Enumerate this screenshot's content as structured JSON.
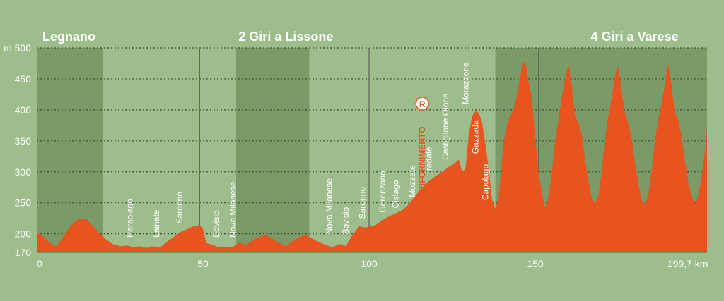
{
  "colors": {
    "background": "#9dbe8c",
    "band": "#7a9a68",
    "profile": "#e8541f",
    "text": "#ffffff",
    "grid": "#3d4a36",
    "divider": "#5a6a55"
  },
  "chart_data": {
    "type": "area",
    "title": "",
    "xlabel": "",
    "ylabel": "m",
    "x_unit": "km",
    "xlim": [
      0,
      201.7
    ],
    "ylim": [
      170,
      500
    ],
    "x_ticks": [
      {
        "value": 0,
        "label": "0"
      },
      {
        "value": 50,
        "label": "50"
      },
      {
        "value": 100,
        "label": "100"
      },
      {
        "value": 150,
        "label": "150"
      },
      {
        "value": 199.7,
        "label": "199,7 km"
      }
    ],
    "y_ticks": [
      {
        "value": 500,
        "label": "m 500"
      },
      {
        "value": 450,
        "label": "450"
      },
      {
        "value": 400,
        "label": "400"
      },
      {
        "value": 350,
        "label": "350"
      },
      {
        "value": 300,
        "label": "300"
      },
      {
        "value": 250,
        "label": "250"
      },
      {
        "value": 200,
        "label": "200"
      },
      {
        "value": 170,
        "label": "170"
      }
    ],
    "grid": true,
    "dividers": [
      49,
      100,
      151
    ],
    "shaded_bands": [
      [
        0,
        20
      ],
      [
        60,
        82
      ],
      [
        138,
        201.7
      ]
    ],
    "sectors": [
      {
        "label": "Legnano",
        "x": 0
      },
      {
        "label": "2 Giri a Lissone",
        "x": 59
      },
      {
        "label": "4 Giri a Varese",
        "x": 165
      }
    ],
    "places": [
      {
        "label": "Parabiago",
        "x": 28,
        "elevation": 185
      },
      {
        "label": "Lainate",
        "x": 36,
        "elevation": 185
      },
      {
        "label": "Saronno",
        "x": 43,
        "elevation": 207
      },
      {
        "label": "Bovisio",
        "x": 54,
        "elevation": 185
      },
      {
        "label": "Nova Milanese",
        "x": 59,
        "elevation": 185
      },
      {
        "label": "Nova Milanese",
        "x": 88,
        "elevation": 190
      },
      {
        "label": "Bovisio",
        "x": 93,
        "elevation": 190
      },
      {
        "label": "Saronno",
        "x": 98,
        "elevation": 215
      },
      {
        "label": "Gerenzano",
        "x": 104,
        "elevation": 225
      },
      {
        "label": "Cislago",
        "x": 108,
        "elevation": 232
      },
      {
        "label": "Mozzate",
        "x": 113,
        "elevation": 250
      },
      {
        "label": "Tradate",
        "x": 118,
        "elevation": 285
      },
      {
        "label": "Castiglione Olona",
        "x": 123,
        "elevation": 310
      },
      {
        "label": "Morazzone",
        "x": 129,
        "elevation": 400
      },
      {
        "label": "Gazzada",
        "x": 132,
        "elevation": 320
      },
      {
        "label": "Capolago",
        "x": 135,
        "elevation": 245
      }
    ],
    "feed_zone": {
      "label": "RIFORNIMENTO",
      "badge": "R",
      "x": 116
    },
    "profile": [
      [
        0,
        202
      ],
      [
        2,
        196
      ],
      [
        4,
        185
      ],
      [
        6,
        180
      ],
      [
        8,
        195
      ],
      [
        10,
        212
      ],
      [
        12,
        222
      ],
      [
        14,
        225
      ],
      [
        15,
        223
      ],
      [
        17,
        212
      ],
      [
        19,
        200
      ],
      [
        21,
        190
      ],
      [
        23,
        183
      ],
      [
        25,
        180
      ],
      [
        27,
        181
      ],
      [
        29,
        179
      ],
      [
        31,
        180
      ],
      [
        33,
        177
      ],
      [
        35,
        180
      ],
      [
        37,
        178
      ],
      [
        39,
        186
      ],
      [
        41,
        194
      ],
      [
        43,
        202
      ],
      [
        45,
        207
      ],
      [
        47,
        212
      ],
      [
        49,
        214
      ],
      [
        50,
        208
      ],
      [
        51,
        185
      ],
      [
        53,
        182
      ],
      [
        55,
        178
      ],
      [
        57,
        179
      ],
      [
        59,
        179
      ],
      [
        61,
        186
      ],
      [
        63,
        182
      ],
      [
        65,
        190
      ],
      [
        67,
        195
      ],
      [
        69,
        198
      ],
      [
        71,
        192
      ],
      [
        73,
        185
      ],
      [
        75,
        180
      ],
      [
        77,
        188
      ],
      [
        79,
        195
      ],
      [
        81,
        198
      ],
      [
        83,
        192
      ],
      [
        85,
        186
      ],
      [
        87,
        182
      ],
      [
        89,
        178
      ],
      [
        91,
        184
      ],
      [
        93,
        180
      ],
      [
        95,
        198
      ],
      [
        97,
        212
      ],
      [
        99,
        210
      ],
      [
        100,
        212
      ],
      [
        102,
        214
      ],
      [
        104,
        222
      ],
      [
        106,
        228
      ],
      [
        108,
        233
      ],
      [
        110,
        238
      ],
      [
        112,
        248
      ],
      [
        114,
        262
      ],
      [
        116,
        275
      ],
      [
        118,
        285
      ],
      [
        120,
        293
      ],
      [
        122,
        300
      ],
      [
        124,
        308
      ],
      [
        126,
        315
      ],
      [
        127,
        320
      ],
      [
        128,
        300
      ],
      [
        129,
        305
      ],
      [
        130,
        360
      ],
      [
        131,
        390
      ],
      [
        132,
        398
      ],
      [
        133,
        395
      ],
      [
        134,
        380
      ],
      [
        135,
        345
      ],
      [
        136,
        305
      ],
      [
        137,
        255
      ],
      [
        138,
        240
      ],
      [
        139,
        260
      ],
      [
        140,
        320
      ],
      [
        141,
        365
      ],
      [
        142,
        385
      ],
      [
        143,
        395
      ],
      [
        144,
        410
      ],
      [
        145,
        440
      ],
      [
        146,
        470
      ],
      [
        147,
        480
      ],
      [
        148,
        445
      ],
      [
        149,
        420
      ],
      [
        150,
        355
      ],
      [
        151,
        300
      ],
      [
        152,
        265
      ],
      [
        153,
        242
      ],
      [
        154,
        260
      ],
      [
        155,
        300
      ],
      [
        156,
        350
      ],
      [
        157,
        385
      ],
      [
        158,
        420
      ],
      [
        159,
        450
      ],
      [
        160,
        475
      ],
      [
        161,
        440
      ],
      [
        162,
        390
      ],
      [
        163,
        380
      ],
      [
        164,
        360
      ],
      [
        165,
        320
      ],
      [
        166,
        285
      ],
      [
        167,
        258
      ],
      [
        168,
        250
      ],
      [
        169,
        262
      ],
      [
        170,
        300
      ],
      [
        171,
        355
      ],
      [
        172,
        390
      ],
      [
        173,
        420
      ],
      [
        174,
        455
      ],
      [
        175,
        472
      ],
      [
        176,
        430
      ],
      [
        177,
        395
      ],
      [
        178,
        380
      ],
      [
        179,
        355
      ],
      [
        180,
        315
      ],
      [
        181,
        282
      ],
      [
        182,
        255
      ],
      [
        183,
        248
      ],
      [
        184,
        262
      ],
      [
        185,
        300
      ],
      [
        186,
        350
      ],
      [
        187,
        385
      ],
      [
        188,
        410
      ],
      [
        189,
        440
      ],
      [
        190,
        475
      ],
      [
        191,
        440
      ],
      [
        192,
        395
      ],
      [
        193,
        385
      ],
      [
        194,
        360
      ],
      [
        195,
        320
      ],
      [
        196,
        285
      ],
      [
        197,
        262
      ],
      [
        198,
        248
      ],
      [
        199,
        260
      ],
      [
        200,
        290
      ],
      [
        201,
        330
      ],
      [
        201.7,
        370
      ]
    ]
  }
}
